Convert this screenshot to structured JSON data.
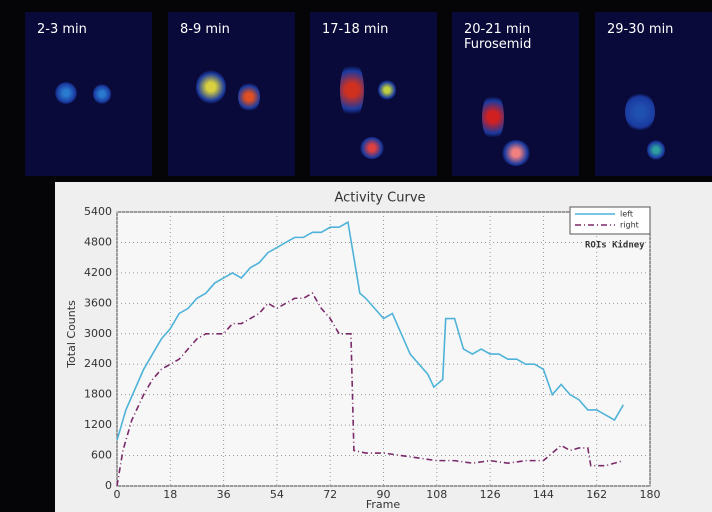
{
  "scan_panels": [
    {
      "label": "2-3 min"
    },
    {
      "label": "8-9 min"
    },
    {
      "label": "17-18 min"
    },
    {
      "label": "20-21 min",
      "sublabel": "Furosemid"
    },
    {
      "label": "29-30 min"
    }
  ],
  "chart_data": {
    "type": "line",
    "title": "Activity Curve",
    "x_label": "Frame",
    "y_label": "Total Counts",
    "annotation": "ROIs Kidney",
    "legend": "top-right",
    "grid": true,
    "xlim": [
      0,
      180
    ],
    "xticks": [
      0,
      18,
      36,
      54,
      72,
      90,
      108,
      126,
      144,
      162,
      180
    ],
    "ylim": [
      0,
      5400
    ],
    "yticks": [
      0,
      600,
      1200,
      1800,
      2400,
      3000,
      3600,
      4200,
      4800,
      5400
    ],
    "series": [
      {
        "name": "left",
        "color": "#4fb3d9",
        "dash": "solid",
        "x": [
          0,
          3,
          6,
          9,
          12,
          15,
          18,
          21,
          24,
          27,
          30,
          33,
          36,
          39,
          42,
          45,
          48,
          51,
          54,
          57,
          60,
          63,
          66,
          69,
          72,
          75,
          78,
          80,
          82,
          84,
          87,
          90,
          93,
          96,
          99,
          102,
          105,
          107,
          110,
          111,
          114,
          117,
          120,
          123,
          126,
          129,
          132,
          135,
          138,
          141,
          144,
          147,
          150,
          153,
          156,
          159,
          162,
          165,
          168,
          171
        ],
        "values": [
          900,
          1500,
          1900,
          2300,
          2600,
          2900,
          3100,
          3400,
          3500,
          3700,
          3800,
          4000,
          4100,
          4200,
          4100,
          4300,
          4400,
          4600,
          4700,
          4800,
          4900,
          4900,
          5000,
          5000,
          5100,
          5100,
          5200,
          4500,
          3800,
          3700,
          3500,
          3300,
          3400,
          3000,
          2600,
          2400,
          2200,
          1950,
          2100,
          3300,
          3300,
          2700,
          2600,
          2700,
          2600,
          2600,
          2500,
          2500,
          2400,
          2400,
          2300,
          1800,
          2000,
          1800,
          1700,
          1500,
          1500,
          1400,
          1300,
          1600
        ]
      },
      {
        "name": "right",
        "color": "#7a2a6a",
        "dash": "dashdot",
        "x": [
          0,
          2,
          5,
          9,
          12,
          15,
          18,
          21,
          24,
          27,
          30,
          33,
          36,
          39,
          42,
          45,
          48,
          51,
          54,
          57,
          60,
          63,
          66,
          69,
          72,
          75,
          79,
          80,
          84,
          90,
          96,
          102,
          108,
          114,
          120,
          126,
          132,
          138,
          144,
          150,
          153,
          156,
          159,
          160,
          165,
          171
        ],
        "values": [
          0,
          700,
          1300,
          1800,
          2100,
          2300,
          2400,
          2500,
          2700,
          2900,
          3000,
          3000,
          3000,
          3200,
          3200,
          3300,
          3400,
          3600,
          3500,
          3600,
          3700,
          3700,
          3800,
          3500,
          3300,
          3000,
          3000,
          700,
          650,
          650,
          600,
          550,
          500,
          500,
          450,
          500,
          450,
          500,
          500,
          800,
          700,
          750,
          750,
          400,
          400,
          500
        ]
      }
    ]
  }
}
